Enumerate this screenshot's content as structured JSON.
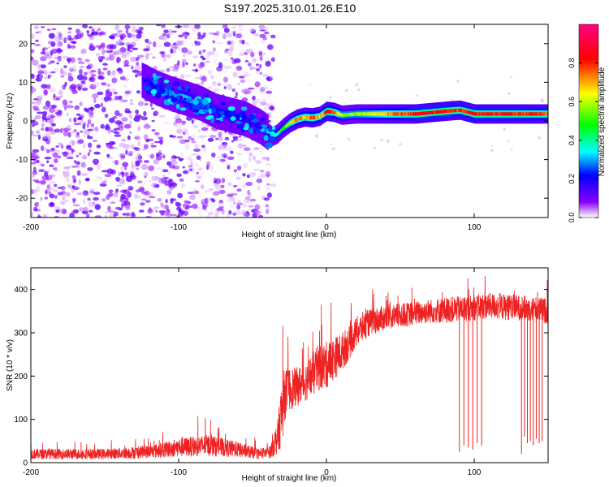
{
  "figure_title": "S197.2025.310.01.26.E10",
  "chart_data": [
    {
      "type": "heatmap",
      "title": "S197.2025.310.01.26.E10",
      "xlabel": "Height of straight line (km)",
      "ylabel": "Frequency (Hz)",
      "xlim": [
        -200,
        150
      ],
      "ylim": [
        -25,
        25
      ],
      "xticks": [
        -200,
        -100,
        0,
        100
      ],
      "yticks": [
        -20,
        -10,
        0,
        10,
        20
      ],
      "xtick_labels": [
        "-200",
        "-100",
        "0",
        "100"
      ],
      "ytick_labels": [
        "-20",
        "-10",
        "0",
        "10",
        "20"
      ],
      "colorbar": {
        "label": "Normalized spectral amplitude",
        "range": [
          0,
          1
        ],
        "ticks": [
          0,
          0.2,
          0.4,
          0.6,
          0.8
        ],
        "tick_labels": [
          "0.0",
          "0.2",
          "0.4",
          "0.6",
          "0.8"
        ],
        "colormap": [
          "#ffffff",
          "#8a00ff",
          "#0000ff",
          "#00ffff",
          "#00ff00",
          "#ffff00",
          "#ff0000",
          "#ff0080"
        ]
      },
      "ridge": {
        "description": "dominant frequency ridge",
        "x": [
          -125,
          -115,
          -105,
          -95,
          -85,
          -75,
          -65,
          -55,
          -45,
          -40,
          -37,
          -34,
          -30,
          -25,
          -20,
          -15,
          -10,
          -5,
          0,
          5,
          10,
          20,
          40,
          60,
          80,
          90,
          100,
          120,
          150
        ],
        "y": [
          10.5,
          8.5,
          7,
          5.8,
          4.5,
          2.5,
          1.5,
          0.5,
          -1.5,
          -3,
          -4,
          -3.5,
          -2,
          -0.5,
          0.5,
          1,
          0.8,
          1.2,
          2.5,
          2.2,
          1.5,
          1.8,
          1.8,
          1.8,
          2.5,
          2.8,
          1.8,
          1.8,
          1.8
        ],
        "amplitude": [
          0.15,
          0.25,
          0.3,
          0.35,
          0.3,
          0.25,
          0.25,
          0.2,
          0.2,
          0.35,
          0.5,
          0.4,
          0.5,
          0.65,
          0.8,
          0.7,
          0.85,
          0.7,
          0.9,
          0.8,
          0.6,
          0.6,
          0.75,
          0.9,
          0.9,
          0.85,
          0.9,
          0.9,
          0.85
        ]
      },
      "noise_region": {
        "x_range": [
          -200,
          -40
        ],
        "y_range": [
          -25,
          25
        ],
        "amplitude": [
          0.0,
          0.15
        ]
      }
    },
    {
      "type": "line",
      "xlabel": "Height of straight line (km)",
      "ylabel": "SNR (10 * v/v)",
      "xlim": [
        -200,
        150
      ],
      "ylim": [
        0,
        450
      ],
      "xticks": [
        -200,
        -100,
        0,
        100
      ],
      "yticks": [
        0,
        100,
        200,
        300,
        400
      ],
      "xtick_labels": [
        "-200",
        "-100",
        "0",
        "100"
      ],
      "ytick_labels": [
        "0",
        "100",
        "200",
        "300",
        "400"
      ],
      "color": "#ee2222",
      "envelope": {
        "x": [
          -200,
          -150,
          -120,
          -100,
          -80,
          -60,
          -45,
          -38,
          -33,
          -30,
          -28,
          -25,
          -20,
          -15,
          -10,
          -5,
          0,
          5,
          10,
          15,
          20,
          25,
          30,
          40,
          50,
          60,
          70,
          80,
          90,
          100,
          110,
          120,
          130,
          140,
          150
        ],
        "y": [
          20,
          20,
          25,
          35,
          40,
          30,
          20,
          25,
          60,
          120,
          160,
          170,
          175,
          185,
          200,
          220,
          225,
          240,
          255,
          275,
          300,
          315,
          325,
          335,
          340,
          345,
          350,
          352,
          355,
          358,
          362,
          360,
          358,
          355,
          350
        ],
        "spread": [
          12,
          12,
          15,
          22,
          25,
          18,
          12,
          15,
          40,
          80,
          60,
          50,
          45,
          45,
          50,
          55,
          55,
          50,
          45,
          40,
          35,
          35,
          30,
          30,
          28,
          28,
          28,
          30,
          30,
          30,
          30,
          30,
          30,
          30,
          30
        ]
      },
      "dropouts": {
        "x": [
          90,
          93,
          96,
          99,
          102,
          105,
          132,
          134,
          136,
          138,
          140,
          142,
          144,
          146
        ],
        "y": [
          25,
          40,
          35,
          30,
          45,
          40,
          20,
          60,
          45,
          50,
          40,
          55,
          45,
          50
        ]
      }
    }
  ]
}
